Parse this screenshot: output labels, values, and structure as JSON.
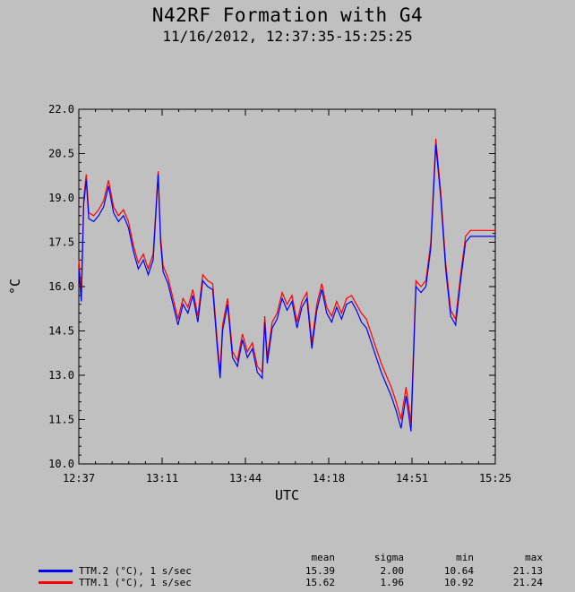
{
  "chart_data": {
    "type": "line",
    "title": "N42RF Formation with G4",
    "subtitle": "11/16/2012, 12:37:35-15:25:25",
    "xlabel": "UTC",
    "ylabel": "°C",
    "ylim": [
      10.0,
      22.0
    ],
    "yticks": [
      "10.0",
      "11.5",
      "13.0",
      "14.5",
      "16.0",
      "17.5",
      "19.0",
      "20.5",
      "22.0"
    ],
    "xticks": [
      "12:37",
      "13:11",
      "13:44",
      "14:18",
      "14:51",
      "15:25"
    ],
    "xlim_minutes": [
      0,
      168
    ],
    "grid": false,
    "series": [
      {
        "name": "TTM.2 (°C), 1 s/sec",
        "color": "#0000ff",
        "x": [
          0,
          1,
          2,
          3,
          4,
          6,
          8,
          10,
          12,
          14,
          16,
          18,
          20,
          22,
          24,
          26,
          28,
          30,
          32,
          33,
          34,
          36,
          38,
          40,
          42,
          44,
          46,
          48,
          50,
          52,
          54,
          56,
          57,
          58,
          60,
          62,
          64,
          66,
          68,
          70,
          72,
          74,
          75,
          76,
          78,
          80,
          82,
          84,
          86,
          88,
          90,
          92,
          94,
          96,
          98,
          100,
          102,
          104,
          106,
          108,
          110,
          112,
          114,
          116,
          118,
          120,
          122,
          124,
          126,
          128,
          130,
          132,
          134,
          136,
          138,
          140,
          142,
          144,
          146,
          148,
          150,
          152,
          154,
          156,
          158,
          160,
          162,
          164,
          166,
          168
        ],
        "values": [
          16.6,
          15.5,
          18.8,
          19.6,
          18.3,
          18.2,
          18.4,
          18.7,
          19.4,
          18.5,
          18.2,
          18.4,
          18.0,
          17.2,
          16.6,
          16.9,
          16.4,
          16.9,
          19.8,
          17.5,
          16.5,
          16.1,
          15.4,
          14.7,
          15.4,
          15.1,
          15.7,
          14.8,
          16.2,
          16.0,
          15.9,
          13.8,
          12.9,
          14.5,
          15.4,
          13.6,
          13.3,
          14.2,
          13.6,
          13.9,
          13.1,
          12.9,
          14.8,
          13.4,
          14.6,
          14.9,
          15.6,
          15.2,
          15.5,
          14.6,
          15.3,
          15.6,
          13.9,
          15.2,
          15.9,
          15.1,
          14.8,
          15.3,
          14.9,
          15.4,
          15.5,
          15.2,
          14.8,
          14.6,
          14.1,
          13.6,
          13.1,
          12.7,
          12.3,
          11.8,
          11.2,
          12.3,
          11.1,
          16.0,
          15.8,
          16.0,
          17.3,
          20.8,
          19.0,
          16.6,
          15.0,
          14.7,
          16.2,
          17.5,
          17.7,
          17.7,
          17.7,
          17.7,
          17.7,
          17.7
        ],
        "mean": "15.39",
        "sigma": "2.00",
        "min": "10.64",
        "max": "21.13"
      },
      {
        "name": "TTM.1 (°C), 1 s/sec",
        "color": "#ff0000",
        "x": [
          0,
          1,
          2,
          3,
          4,
          6,
          8,
          10,
          12,
          14,
          16,
          18,
          20,
          22,
          24,
          26,
          28,
          30,
          32,
          33,
          34,
          36,
          38,
          40,
          42,
          44,
          46,
          48,
          50,
          52,
          54,
          56,
          57,
          58,
          60,
          62,
          64,
          66,
          68,
          70,
          72,
          74,
          75,
          76,
          78,
          80,
          82,
          84,
          86,
          88,
          90,
          92,
          94,
          96,
          98,
          100,
          102,
          104,
          106,
          108,
          110,
          112,
          114,
          116,
          118,
          120,
          122,
          124,
          126,
          128,
          130,
          132,
          134,
          136,
          138,
          140,
          142,
          144,
          146,
          148,
          150,
          152,
          154,
          156,
          158,
          160,
          162,
          164,
          166,
          168
        ],
        "values": [
          16.9,
          15.8,
          19.0,
          19.8,
          18.5,
          18.4,
          18.6,
          18.9,
          19.6,
          18.7,
          18.4,
          18.6,
          18.2,
          17.4,
          16.8,
          17.1,
          16.6,
          17.1,
          19.9,
          17.7,
          16.7,
          16.3,
          15.6,
          14.9,
          15.6,
          15.3,
          15.9,
          15.0,
          16.4,
          16.2,
          16.1,
          14.0,
          13.1,
          14.7,
          15.6,
          13.8,
          13.5,
          14.4,
          13.8,
          14.1,
          13.3,
          13.1,
          15.0,
          13.6,
          14.8,
          15.1,
          15.8,
          15.4,
          15.7,
          14.8,
          15.5,
          15.8,
          14.1,
          15.4,
          16.1,
          15.3,
          15.0,
          15.5,
          15.1,
          15.6,
          15.7,
          15.4,
          15.1,
          14.9,
          14.4,
          13.9,
          13.4,
          13.0,
          12.6,
          12.1,
          11.5,
          12.6,
          11.4,
          16.2,
          16.0,
          16.2,
          17.5,
          21.0,
          19.2,
          16.8,
          15.2,
          14.9,
          16.4,
          17.7,
          17.9,
          17.9,
          17.9,
          17.9,
          17.9,
          17.9
        ],
        "mean": "15.62",
        "sigma": "1.96",
        "min": "10.92",
        "max": "21.24"
      }
    ],
    "legend": {
      "placement": "bottom",
      "headers": {
        "mean": "mean",
        "sigma": "sigma",
        "min": "min",
        "max": "max"
      }
    }
  }
}
